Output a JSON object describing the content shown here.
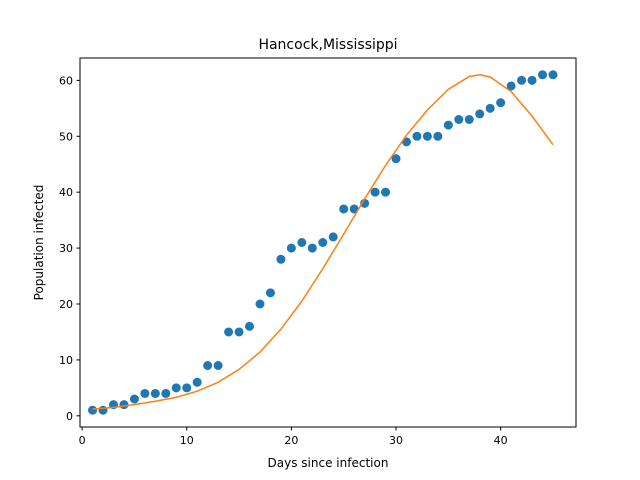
{
  "chart_data": {
    "type": "scatter",
    "title": "Hancock,Mississippi",
    "xlabel": "Days since infection",
    "ylabel": "Population infected",
    "xlim": [
      -0.2,
      47.2
    ],
    "ylim": [
      -2.0,
      64.0
    ],
    "xticks": [
      0,
      10,
      20,
      30,
      40
    ],
    "yticks": [
      0,
      10,
      20,
      30,
      40,
      50,
      60
    ],
    "grid": false,
    "series": [
      {
        "kind": "scatter",
        "color": "#1f77b4",
        "x": [
          1,
          2,
          3,
          4,
          5,
          6,
          7,
          8,
          9,
          10,
          11,
          12,
          13,
          14,
          15,
          16,
          17,
          18,
          19,
          20,
          21,
          22,
          23,
          24,
          25,
          26,
          27,
          28,
          29,
          30,
          31,
          32,
          33,
          34,
          35,
          36,
          37,
          38,
          39,
          40,
          41,
          42,
          43,
          44,
          45
        ],
        "y": [
          1,
          1,
          2,
          2,
          3,
          4,
          4,
          4,
          5,
          5,
          6,
          9,
          9,
          15,
          15,
          16,
          20,
          22,
          28,
          30,
          31,
          30,
          31,
          32,
          37,
          37,
          38,
          40,
          40,
          46,
          49,
          50,
          50,
          50,
          52,
          53,
          53,
          54,
          55,
          56,
          59,
          60,
          60,
          61,
          61
        ]
      },
      {
        "kind": "line",
        "color": "#ff7f0e",
        "x": [
          1,
          3,
          5,
          7,
          9,
          11,
          13,
          15,
          17,
          19,
          21,
          23,
          25,
          27,
          29,
          31,
          33,
          35,
          37,
          38,
          39,
          41,
          43,
          45
        ],
        "y": [
          1.2,
          1.5,
          2.0,
          2.6,
          3.3,
          4.4,
          6.0,
          8.3,
          11.4,
          15.5,
          20.5,
          26.3,
          32.5,
          38.8,
          44.8,
          50.2,
          54.7,
          58.4,
          60.7,
          61.0,
          60.6,
          58.0,
          53.6,
          48.5
        ]
      }
    ]
  }
}
